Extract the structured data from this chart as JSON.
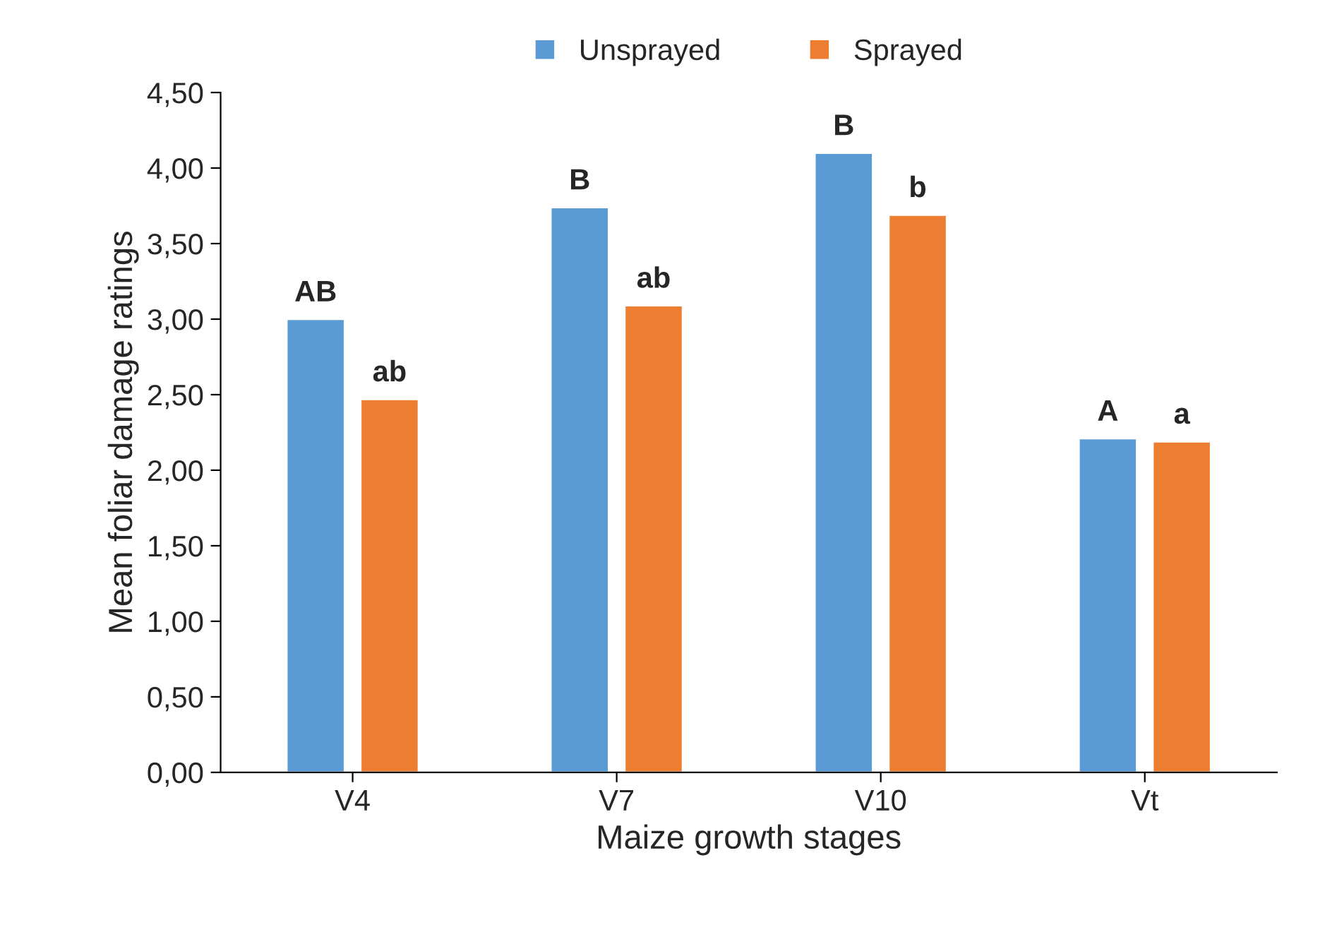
{
  "chart_data": {
    "type": "bar",
    "xlabel": "Maize growth stages",
    "ylabel": "Mean foliar damage ratings",
    "categories": [
      "V4",
      "V7",
      "V10",
      "Vt"
    ],
    "series": [
      {
        "name": "Unsprayed",
        "color": "#5b9bd5",
        "values": [
          3.0,
          3.74,
          4.1,
          2.21
        ]
      },
      {
        "name": "Sprayed",
        "color": "#ed7d31",
        "values": [
          2.47,
          3.09,
          3.69,
          2.19
        ]
      }
    ],
    "ylim": [
      0,
      4.5
    ],
    "yticks": [
      {
        "value": 0,
        "label": "0,00"
      },
      {
        "value": 0.5,
        "label": "0,50"
      },
      {
        "value": 1,
        "label": "1,00"
      },
      {
        "value": 1.5,
        "label": "1,50"
      },
      {
        "value": 2,
        "label": "2,00"
      },
      {
        "value": 2.5,
        "label": "2,50"
      },
      {
        "value": 3,
        "label": "3,00"
      },
      {
        "value": 3.5,
        "label": "3,50"
      },
      {
        "value": 4,
        "label": "4,00"
      },
      {
        "value": 4.5,
        "label": "4,50"
      }
    ],
    "annotations": [
      "AB",
      "ab",
      "B",
      "ab",
      "B",
      "b",
      "A",
      "a"
    ],
    "grid": false,
    "legend": "top"
  }
}
